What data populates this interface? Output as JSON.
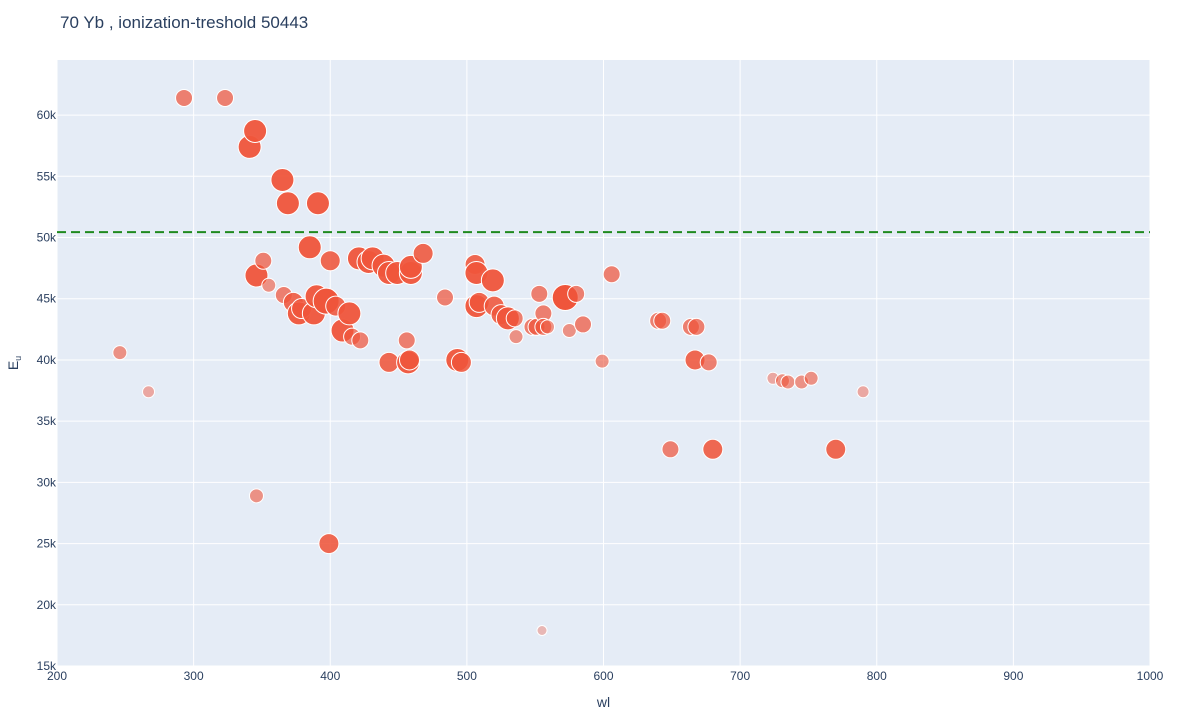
{
  "chart_data": {
    "type": "scatter",
    "title": "70 Yb , ionization-treshold 50443",
    "xlabel": "wl",
    "ylabel": "E",
    "ylabel_subscript": "u",
    "xlim": [
      200,
      1000
    ],
    "ylim": [
      15000,
      64500
    ],
    "x_ticks": [
      200,
      300,
      400,
      500,
      600,
      700,
      800,
      900,
      1000
    ],
    "x_tick_labels": [
      "200",
      "300",
      "400",
      "500",
      "600",
      "700",
      "800",
      "900",
      "1000"
    ],
    "y_ticks": [
      15000,
      20000,
      25000,
      30000,
      35000,
      40000,
      45000,
      50000,
      55000,
      60000
    ],
    "y_tick_labels": [
      "15k",
      "20k",
      "25k",
      "30k",
      "35k",
      "40k",
      "45k",
      "50k",
      "55k",
      "60k"
    ],
    "grid": true,
    "threshold": 50443,
    "colors": {
      "plot_bg": "#E5ECF6",
      "grid": "#ffffff",
      "marker": "#EF553B",
      "threshold_line": "#1f8a1f",
      "text": "#2a3f5f"
    },
    "points": [
      {
        "x": 246,
        "y": 40600,
        "s": 2
      },
      {
        "x": 267,
        "y": 37400,
        "s": 1
      },
      {
        "x": 293,
        "y": 61400,
        "s": 3
      },
      {
        "x": 323,
        "y": 61400,
        "s": 3
      },
      {
        "x": 341,
        "y": 57400,
        "s": 5
      },
      {
        "x": 345,
        "y": 58700,
        "s": 5
      },
      {
        "x": 346,
        "y": 28900,
        "s": 2
      },
      {
        "x": 346,
        "y": 46900,
        "s": 5
      },
      {
        "x": 351,
        "y": 48100,
        "s": 3
      },
      {
        "x": 355,
        "y": 46100,
        "s": 2
      },
      {
        "x": 365,
        "y": 54700,
        "s": 5
      },
      {
        "x": 366,
        "y": 45300,
        "s": 3
      },
      {
        "x": 369,
        "y": 52800,
        "s": 5
      },
      {
        "x": 373,
        "y": 44700,
        "s": 4
      },
      {
        "x": 377,
        "y": 43800,
        "s": 5
      },
      {
        "x": 379,
        "y": 44200,
        "s": 4
      },
      {
        "x": 385,
        "y": 49200,
        "s": 5
      },
      {
        "x": 388,
        "y": 43800,
        "s": 5
      },
      {
        "x": 390,
        "y": 45200,
        "s": 5
      },
      {
        "x": 391,
        "y": 52800,
        "s": 5
      },
      {
        "x": 397,
        "y": 44800,
        "s": 6
      },
      {
        "x": 399,
        "y": 25000,
        "s": 4
      },
      {
        "x": 400,
        "y": 48100,
        "s": 4
      },
      {
        "x": 404,
        "y": 44400,
        "s": 4
      },
      {
        "x": 409,
        "y": 42400,
        "s": 5
      },
      {
        "x": 414,
        "y": 43800,
        "s": 5
      },
      {
        "x": 416,
        "y": 41900,
        "s": 3
      },
      {
        "x": 421,
        "y": 48300,
        "s": 5
      },
      {
        "x": 422,
        "y": 41600,
        "s": 3
      },
      {
        "x": 428,
        "y": 48000,
        "s": 5
      },
      {
        "x": 431,
        "y": 48300,
        "s": 5
      },
      {
        "x": 439,
        "y": 47700,
        "s": 5
      },
      {
        "x": 443,
        "y": 47100,
        "s": 5
      },
      {
        "x": 443,
        "y": 39800,
        "s": 4
      },
      {
        "x": 449,
        "y": 47100,
        "s": 5
      },
      {
        "x": 456,
        "y": 41600,
        "s": 3
      },
      {
        "x": 457,
        "y": 39800,
        "s": 5
      },
      {
        "x": 458,
        "y": 40000,
        "s": 4
      },
      {
        "x": 459,
        "y": 47100,
        "s": 5
      },
      {
        "x": 459,
        "y": 47600,
        "s": 5
      },
      {
        "x": 468,
        "y": 48700,
        "s": 4
      },
      {
        "x": 484,
        "y": 45100,
        "s": 3
      },
      {
        "x": 493,
        "y": 40000,
        "s": 5
      },
      {
        "x": 496,
        "y": 39800,
        "s": 4
      },
      {
        "x": 506,
        "y": 47800,
        "s": 4
      },
      {
        "x": 507,
        "y": 44400,
        "s": 5
      },
      {
        "x": 507,
        "y": 47100,
        "s": 5
      },
      {
        "x": 509,
        "y": 44700,
        "s": 4
      },
      {
        "x": 519,
        "y": 46500,
        "s": 5
      },
      {
        "x": 520,
        "y": 44400,
        "s": 4
      },
      {
        "x": 525,
        "y": 43700,
        "s": 4
      },
      {
        "x": 530,
        "y": 43400,
        "s": 5
      },
      {
        "x": 535,
        "y": 43400,
        "s": 3
      },
      {
        "x": 536,
        "y": 41900,
        "s": 2
      },
      {
        "x": 548,
        "y": 42700,
        "s": 3
      },
      {
        "x": 551,
        "y": 42700,
        "s": 3
      },
      {
        "x": 553,
        "y": 45400,
        "s": 3
      },
      {
        "x": 555,
        "y": 17900,
        "s": 0
      },
      {
        "x": 556,
        "y": 43800,
        "s": 3
      },
      {
        "x": 556,
        "y": 42700,
        "s": 3
      },
      {
        "x": 559,
        "y": 42700,
        "s": 2
      },
      {
        "x": 572,
        "y": 45100,
        "s": 6
      },
      {
        "x": 575,
        "y": 42400,
        "s": 2
      },
      {
        "x": 580,
        "y": 45400,
        "s": 3
      },
      {
        "x": 585,
        "y": 42900,
        "s": 3
      },
      {
        "x": 599,
        "y": 39900,
        "s": 2
      },
      {
        "x": 606,
        "y": 47000,
        "s": 3
      },
      {
        "x": 640,
        "y": 43200,
        "s": 3
      },
      {
        "x": 643,
        "y": 43200,
        "s": 3
      },
      {
        "x": 649,
        "y": 32700,
        "s": 3
      },
      {
        "x": 664,
        "y": 42700,
        "s": 3
      },
      {
        "x": 667,
        "y": 40000,
        "s": 4
      },
      {
        "x": 668,
        "y": 42700,
        "s": 3
      },
      {
        "x": 677,
        "y": 39800,
        "s": 3
      },
      {
        "x": 680,
        "y": 32700,
        "s": 4
      },
      {
        "x": 724,
        "y": 38500,
        "s": 1
      },
      {
        "x": 731,
        "y": 38300,
        "s": 2
      },
      {
        "x": 735,
        "y": 38200,
        "s": 2
      },
      {
        "x": 745,
        "y": 38200,
        "s": 2
      },
      {
        "x": 752,
        "y": 38500,
        "s": 2
      },
      {
        "x": 770,
        "y": 32700,
        "s": 4
      },
      {
        "x": 790,
        "y": 37400,
        "s": 1
      }
    ]
  }
}
